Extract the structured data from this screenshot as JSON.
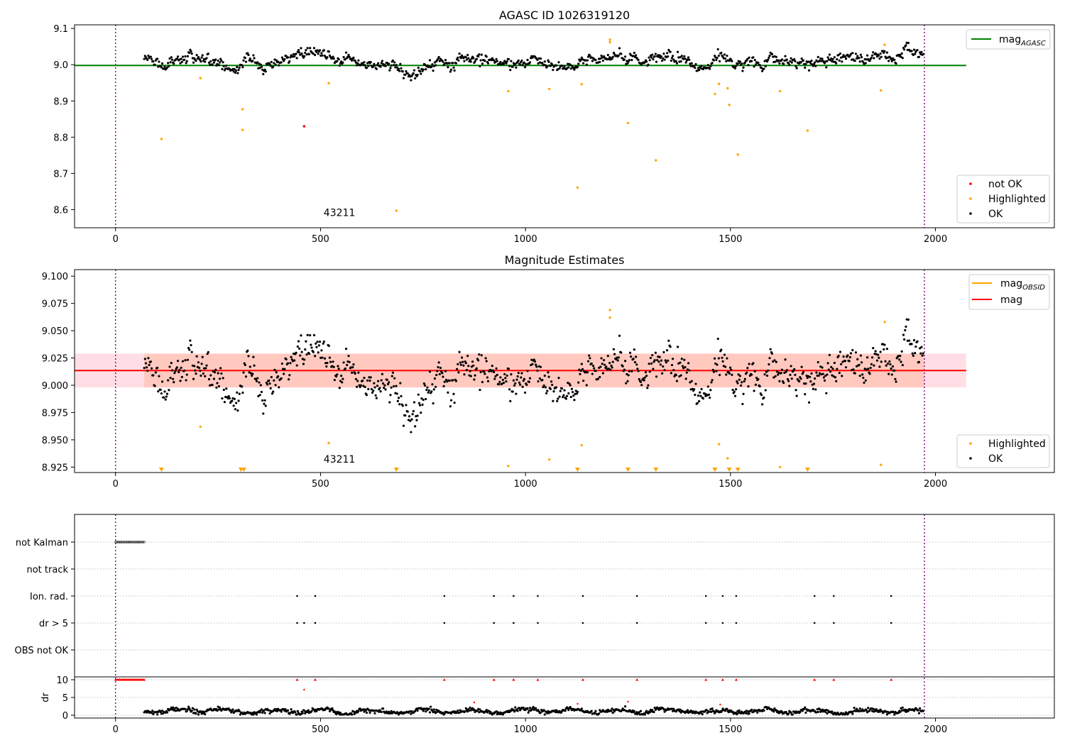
{
  "chart_data": [
    {
      "type": "scatter",
      "title": "AGASC ID 1026319120",
      "xlim": [
        -100,
        2290
      ],
      "ylim": [
        8.55,
        9.11
      ],
      "xticks": [
        0,
        500,
        1000,
        1500,
        2000
      ],
      "yticks": [
        8.6,
        8.7,
        8.8,
        8.9,
        9.0,
        9.1
      ],
      "ytick_labels": [
        "8.6",
        "8.7",
        "8.8",
        "8.9",
        "9.0",
        "9.1"
      ],
      "grid": false,
      "vlines": [
        0,
        1973
      ],
      "obsid_annotation": {
        "text": "43211",
        "x": 986,
        "y": 8.565
      },
      "hline": {
        "name": "mag_AGASC",
        "label_main": "mag",
        "label_sub": "AGASC",
        "y": 8.998,
        "x_range": [
          -100,
          2075
        ],
        "color": "#008000"
      },
      "ok_series": {
        "x_start": 70,
        "x_end": 1970,
        "base": 9.0,
        "amplitude": 0.012,
        "jitter": 0.006,
        "trend": 0.03
      },
      "not_ok_points": [
        {
          "x": 460,
          "y": 8.83
        }
      ],
      "highlighted_points": [
        {
          "x": 112,
          "y": 8.795
        },
        {
          "x": 207,
          "y": 8.963
        },
        {
          "x": 310,
          "y": 8.877
        },
        {
          "x": 310,
          "y": 8.82
        },
        {
          "x": 520,
          "y": 8.949
        },
        {
          "x": 685,
          "y": 8.597
        },
        {
          "x": 958,
          "y": 8.927
        },
        {
          "x": 1058,
          "y": 8.933
        },
        {
          "x": 1127,
          "y": 8.661
        },
        {
          "x": 1137,
          "y": 8.946
        },
        {
          "x": 1206,
          "y": 9.062
        },
        {
          "x": 1206,
          "y": 9.069
        },
        {
          "x": 1250,
          "y": 8.839
        },
        {
          "x": 1318,
          "y": 8.736
        },
        {
          "x": 1462,
          "y": 8.919
        },
        {
          "x": 1472,
          "y": 8.947
        },
        {
          "x": 1493,
          "y": 8.935
        },
        {
          "x": 1497,
          "y": 8.889
        },
        {
          "x": 1518,
          "y": 8.752
        },
        {
          "x": 1621,
          "y": 8.927
        },
        {
          "x": 1688,
          "y": 8.818
        },
        {
          "x": 1867,
          "y": 8.929
        },
        {
          "x": 1876,
          "y": 9.055
        }
      ],
      "legends": [
        {
          "location": "upper-right",
          "entries": [
            {
              "label": "mag",
              "sub": "AGASC",
              "kind": "line",
              "color": "#008000"
            }
          ]
        },
        {
          "location": "lower-right",
          "entries": [
            {
              "label": "not OK",
              "kind": "dot",
              "color": "#ff0000"
            },
            {
              "label": "Highlighted",
              "kind": "dot",
              "color": "#ffa500"
            },
            {
              "label": "OK",
              "kind": "dot",
              "color": "#000000"
            }
          ]
        }
      ]
    },
    {
      "type": "scatter",
      "title": "Magnitude Estimates",
      "xlim": [
        -100,
        2290
      ],
      "ylim": [
        8.92,
        9.106
      ],
      "xticks": [
        0,
        500,
        1000,
        1500,
        2000
      ],
      "yticks": [
        8.925,
        8.95,
        8.975,
        9.0,
        9.025,
        9.05,
        9.075,
        9.1
      ],
      "ytick_labels": [
        "8.925",
        "8.950",
        "8.975",
        "9.000",
        "9.025",
        "9.050",
        "9.075",
        "9.100"
      ],
      "grid": false,
      "vlines": [
        0,
        1973
      ],
      "obsid_annotation": {
        "text": "43211",
        "x": 986,
        "y": 8.924
      },
      "mag_line": {
        "label": "mag",
        "y": 9.0135,
        "x_range": [
          -100,
          2075
        ],
        "color": "#ff0000"
      },
      "mag_band": {
        "y_low": 8.998,
        "y_high": 9.029,
        "x_range": [
          -100,
          2075
        ],
        "color": "#ffc0cb"
      },
      "obsid_band": {
        "y_low": 8.998,
        "y_high": 9.029,
        "x_range": [
          70,
          1973
        ],
        "color": "#ffa07a"
      },
      "obsid_line": {
        "label_main": "mag",
        "label_sub": "OBSID",
        "color": "#ffa500"
      },
      "ok_series": {
        "x_start": 70,
        "x_end": 1970,
        "base": 9.0,
        "amplitude": 0.012,
        "jitter": 0.006,
        "trend": 0.03
      },
      "highlighted_points": [
        {
          "x": 207,
          "y": 8.962
        },
        {
          "x": 520,
          "y": 8.947
        },
        {
          "x": 958,
          "y": 8.926
        },
        {
          "x": 1058,
          "y": 8.932
        },
        {
          "x": 1137,
          "y": 8.945
        },
        {
          "x": 1206,
          "y": 9.062
        },
        {
          "x": 1206,
          "y": 9.069
        },
        {
          "x": 1472,
          "y": 8.946
        },
        {
          "x": 1493,
          "y": 8.933
        },
        {
          "x": 1621,
          "y": 8.925
        },
        {
          "x": 1867,
          "y": 8.927
        },
        {
          "x": 1876,
          "y": 9.058
        }
      ],
      "below_limit_markers": [
        112,
        306,
        313,
        685,
        1127,
        1250,
        1318,
        1462,
        1497,
        1518,
        1688
      ],
      "legends": [
        {
          "location": "upper-right",
          "entries": [
            {
              "label": "mag",
              "sub": "OBSID",
              "kind": "line",
              "color": "#ffa500"
            },
            {
              "label": "mag",
              "kind": "line",
              "color": "#ff0000"
            }
          ]
        },
        {
          "location": "lower-right",
          "entries": [
            {
              "label": "Highlighted",
              "kind": "dot",
              "color": "#ffa500"
            },
            {
              "label": "OK",
              "kind": "dot",
              "color": "#000000"
            }
          ]
        }
      ]
    },
    {
      "type": "scatter",
      "title": "",
      "xlim": [
        -100,
        2290
      ],
      "xticks": [
        0,
        500,
        1000,
        1500,
        2000
      ],
      "vlines": [
        0,
        1973
      ],
      "flag_rows": [
        {
          "label": "not Kalman",
          "x": [
            0,
            5,
            10,
            15,
            20,
            25,
            30,
            35,
            40,
            45,
            50,
            55,
            60,
            65,
            70
          ]
        },
        {
          "label": "not track",
          "x": []
        },
        {
          "label": "Ion. rad.",
          "x": [
            443,
            487,
            802,
            923,
            971,
            1030,
            1140,
            1272,
            1440,
            1481,
            1514,
            1705,
            1752,
            1892
          ]
        },
        {
          "label": "dr > 5",
          "x": [
            443,
            460,
            487,
            802,
            923,
            971,
            1030,
            1140,
            1272,
            1440,
            1481,
            1514,
            1705,
            1752,
            1892
          ]
        },
        {
          "label": "OBS not OK",
          "x": []
        }
      ],
      "dr_panel": {
        "ylabel": "dr",
        "ylim": [
          -0.8,
          10.8
        ],
        "yticks": [
          0,
          5,
          10
        ],
        "capped_value": 10,
        "capped_x": [
          0,
          5,
          10,
          15,
          20,
          25,
          30,
          35,
          40,
          45,
          50,
          55,
          60,
          65,
          70,
          443,
          487,
          802,
          923,
          971,
          1030,
          1140,
          1272,
          1440,
          1481,
          1514,
          1705,
          1752,
          1892
        ],
        "red_points": [
          {
            "x": 460,
            "y": 7.2
          },
          {
            "x": 875,
            "y": 3.6
          },
          {
            "x": 1127,
            "y": 3.2
          },
          {
            "x": 1250,
            "y": 3.8
          },
          {
            "x": 1475,
            "y": 3.0
          }
        ],
        "ok_series": {
          "x_start": 70,
          "x_end": 1970,
          "base": 1.1,
          "amplitude": 0.5,
          "jitter": 0.3
        },
        "colors": {
          "ok": "#000000",
          "flagged": "#ff0000"
        }
      }
    }
  ]
}
